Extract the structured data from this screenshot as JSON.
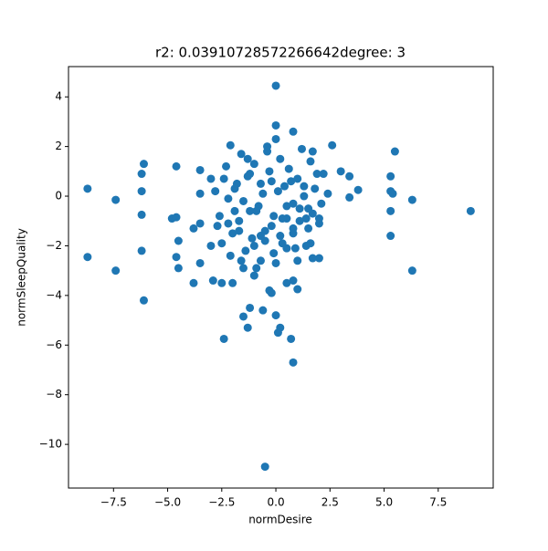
{
  "chart_data": {
    "type": "scatter",
    "title": "r2: 0.03910728572266642degree: 3",
    "x_label": "normDesire",
    "y_label": "normSleepQuality",
    "color": "#1f77b4",
    "xlim": [
      -9.58,
      10.04
    ],
    "ylim": [
      -11.76,
      5.22
    ],
    "xticks": [
      {
        "value": -7.5,
        "label": "−7.5"
      },
      {
        "value": -5.0,
        "label": "−5.0"
      },
      {
        "value": -2.5,
        "label": "−2.5"
      },
      {
        "value": 0.0,
        "label": "0.0"
      },
      2.5,
      {
        "value": 5.0,
        "label": "5.0"
      },
      7.5
    ],
    "yticks": [
      {
        "value": -10,
        "label": "−10"
      },
      {
        "value": -8,
        "label": "−8"
      },
      {
        "value": -6,
        "label": "−6"
      },
      {
        "value": -4,
        "label": "−4"
      },
      {
        "value": -2,
        "label": "−2"
      },
      0,
      2,
      4
    ],
    "x": [
      -8.7,
      -8.7,
      -7.4,
      -7.4,
      -6.1,
      -6.2,
      -6.2,
      -6.2,
      -6.2,
      -6.1,
      -4.8,
      -4.6,
      -4.6,
      -4.5,
      -4.6,
      -4.5,
      -3.8,
      -3.8,
      -3.5,
      -3.5,
      -3.5,
      -3.5,
      -3.0,
      -3.0,
      -2.9,
      -2.5,
      -2.4,
      -1.3,
      -1.5,
      -1.2,
      -0.6,
      -0.3,
      0.0,
      0.2,
      0.1,
      0.7,
      0.8,
      -0.5,
      0.0,
      0.0,
      0.8,
      -2.1,
      2.6,
      3.0,
      3.4,
      3.4,
      3.8,
      5.3,
      5.3,
      5.4,
      5.5,
      5.3,
      5.3,
      6.3,
      6.3,
      9.0,
      2.0,
      1.7,
      1.6,
      -0.9,
      0.5,
      1.0,
      0.8,
      -0.2,
      -2.8,
      -2.6,
      -2.3,
      -2.0,
      -1.8,
      -1.6,
      -1.4,
      -1.2,
      -1.0,
      -0.8,
      -0.6,
      -0.4,
      -0.2,
      0.0,
      0.2,
      0.4,
      0.6,
      0.8,
      1.0,
      1.2,
      1.4,
      1.6,
      1.8,
      2.0,
      2.2,
      2.4,
      -2.7,
      -2.4,
      -2.1,
      -1.9,
      -1.7,
      -1.5,
      -1.3,
      -1.1,
      -0.9,
      -0.7,
      -0.5,
      -0.3,
      -0.1,
      0.1,
      0.3,
      0.5,
      0.7,
      0.9,
      1.1,
      1.3,
      1.5,
      1.7,
      1.9,
      2.1,
      -2.5,
      -2.2,
      -1.9,
      -1.6,
      -1.3,
      -1.0,
      -0.7,
      -0.4,
      -0.1,
      0.2,
      0.5,
      0.8,
      1.1,
      1.4,
      1.7,
      2.0,
      -2.0,
      -1.5,
      -1.0,
      -0.5,
      0.0,
      0.5,
      1.0,
      1.5,
      -2.2,
      -1.7,
      -1.2,
      -0.7,
      -0.2,
      0.3,
      0.8,
      1.3
    ],
    "y": [
      0.3,
      -2.45,
      -0.15,
      -3.0,
      1.3,
      0.9,
      0.2,
      -0.75,
      -2.2,
      -4.2,
      -0.9,
      -0.85,
      1.2,
      -1.8,
      -2.45,
      -2.9,
      -3.5,
      -1.3,
      -1.1,
      1.05,
      0.1,
      -2.7,
      0.7,
      -2.0,
      -3.4,
      -3.5,
      -5.75,
      -5.3,
      -4.85,
      -4.5,
      -4.6,
      -3.8,
      -4.8,
      -5.3,
      -5.5,
      -5.75,
      -6.7,
      -10.9,
      4.45,
      2.85,
      2.6,
      2.05,
      2.05,
      1.0,
      0.8,
      -0.05,
      0.25,
      0.8,
      0.2,
      0.1,
      1.8,
      -0.6,
      -1.6,
      -0.15,
      -3.0,
      -0.6,
      -2.5,
      -2.5,
      -1.9,
      -2.9,
      -3.5,
      -3.75,
      -3.4,
      -3.9,
      0.2,
      -0.8,
      1.2,
      -1.5,
      0.5,
      1.7,
      -2.2,
      0.9,
      1.3,
      -0.4,
      0.1,
      1.8,
      0.6,
      2.3,
      1.5,
      0.4,
      1.1,
      -0.3,
      0.7,
      1.9,
      -0.9,
      1.4,
      0.3,
      -1.1,
      0.9,
      0.1,
      -1.2,
      0.7,
      -2.4,
      0.3,
      -1.0,
      -0.2,
      0.8,
      -1.7,
      -0.6,
      0.5,
      -1.4,
      1.0,
      -0.8,
      0.2,
      -1.9,
      -0.4,
      0.6,
      -2.1,
      -0.5,
      0.4,
      -1.3,
      -0.7,
      0.9,
      -0.3,
      -1.9,
      -0.1,
      -0.6,
      -2.6,
      1.5,
      -2.0,
      -2.6,
      2.0,
      -2.3,
      -1.6,
      -2.1,
      -1.3,
      -1.0,
      -2.0,
      1.8,
      -0.9,
      -3.5,
      -2.9,
      -3.2,
      -1.8,
      -2.7,
      -0.9,
      -2.6,
      -0.5,
      -1.1,
      -1.4,
      -0.6,
      -1.6,
      -1.2,
      -0.9,
      -1.5,
      0.0
    ]
  }
}
